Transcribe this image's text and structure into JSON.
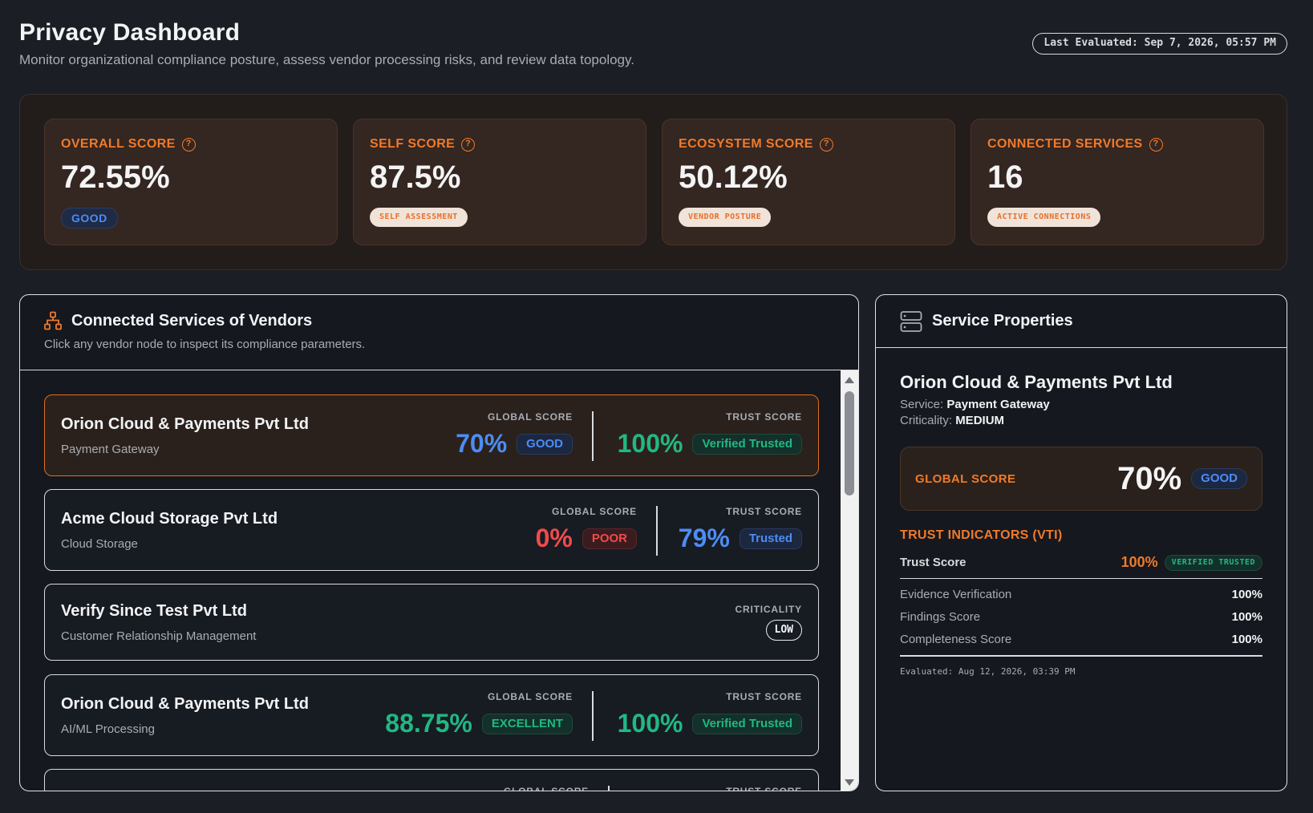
{
  "header": {
    "title": "Privacy Dashboard",
    "subtitle": "Monitor organizational compliance posture, assess vendor processing risks, and review data topology.",
    "last_evaluated": "Last Evaluated: Sep 7, 2026, 05:57 PM"
  },
  "stats": [
    {
      "label": "OVERALL SCORE",
      "value": "72.55%",
      "badge": "GOOD",
      "icon": "help-circle-icon"
    },
    {
      "label": "SELF SCORE",
      "value": "87.5%",
      "badge": "SELF ASSESSMENT",
      "icon": "help-circle-icon"
    },
    {
      "label": "ECOSYSTEM SCORE",
      "value": "50.12%",
      "badge": "VENDOR POSTURE",
      "icon": "help-circle-icon"
    },
    {
      "label": "CONNECTED SERVICES",
      "value": "16",
      "badge": "ACTIVE CONNECTIONS",
      "icon": "help-circle-icon"
    }
  ],
  "vendors_panel": {
    "title": "Connected Services of Vendors",
    "description": "Click any vendor node to inspect its compliance parameters.",
    "icon": "network-tree-icon",
    "global_label": "GLOBAL SCORE",
    "trust_label": "TRUST SCORE",
    "criticality_label": "CRITICALITY",
    "vendors": [
      {
        "name": "Orion Cloud & Payments Pvt Ltd",
        "service": "Payment Gateway",
        "global": "70%",
        "global_badge": "GOOD",
        "trust": "100%",
        "trust_badge": "Verified Trusted"
      },
      {
        "name": "Acme Cloud Storage Pvt Ltd",
        "service": "Cloud Storage",
        "global": "0%",
        "global_badge": "POOR",
        "trust": "79%",
        "trust_badge": "Trusted"
      },
      {
        "name": "Verify Since Test Pvt Ltd",
        "service": "Customer Relationship Management",
        "criticality": "LOW"
      },
      {
        "name": "Orion Cloud & Payments Pvt Ltd",
        "service": "AI/ML Processing",
        "global": "88.75%",
        "global_badge": "EXCELLENT",
        "trust": "100%",
        "trust_badge": "Verified Trusted"
      }
    ]
  },
  "properties": {
    "title": "Service Properties",
    "icon": "server-icon",
    "vendor": "Orion Cloud & Payments Pvt Ltd",
    "service_label": "Service:",
    "service": "Payment Gateway",
    "criticality_label": "Criticality:",
    "criticality": "MEDIUM",
    "global_label": "GLOBAL SCORE",
    "global_value": "70%",
    "global_badge": "GOOD",
    "trust_section": "TRUST INDICATORS (VTI)",
    "trust_label": "Trust Score",
    "trust_value": "100%",
    "trust_badge": "VERIFIED TRUSTED",
    "metrics": [
      {
        "label": "Evidence Verification",
        "value": "100%"
      },
      {
        "label": "Findings Score",
        "value": "100%"
      },
      {
        "label": "Completeness Score",
        "value": "100%"
      }
    ],
    "evaluated": "Evaluated: Aug 12, 2026, 03:39 PM"
  },
  "colors": {
    "accent_orange": "#f07a2a",
    "good_blue": "#4d8cf5",
    "excellent_green": "#21b883",
    "poor_red": "#ef4b4b"
  }
}
